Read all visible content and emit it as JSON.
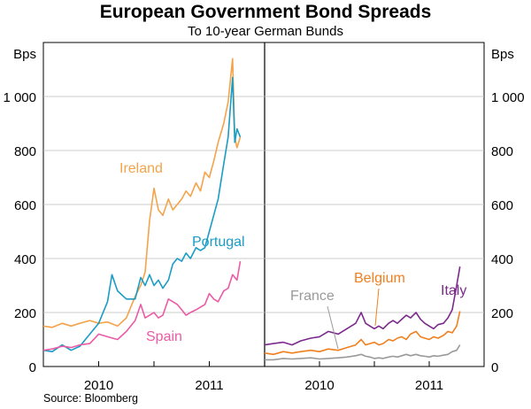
{
  "title": "European Government Bond Spreads",
  "subtitle": "To 10-year German Bunds",
  "source": "Source: Bloomberg",
  "colors": {
    "ireland": "#f4a34a",
    "portugal": "#1a9cc4",
    "spain": "#ea5ba5",
    "italy": "#7b2a8c",
    "belgium": "#f07f1e",
    "france": "#9a9a9a"
  },
  "chart_data": [
    {
      "type": "line",
      "panel": "left",
      "title": "European Government Bond Spreads",
      "subtitle": "To 10-year German Bunds",
      "ylabel": "Bps",
      "ylim": [
        0,
        1200
      ],
      "yticks": [
        0,
        200,
        400,
        600,
        800,
        1000
      ],
      "ytick_labels": [
        "0",
        "200",
        "400",
        "600",
        "800",
        "1 000"
      ],
      "xlim": [
        2009.5,
        2011.5
      ],
      "xtick_labels": [
        "2010",
        "2011"
      ],
      "xticks": [
        2010,
        2011
      ],
      "x_tick_marks": [
        2009.5,
        2010,
        2010.5,
        2011,
        2011.5
      ],
      "series": [
        {
          "name": "Ireland",
          "color_key": "ireland",
          "points": [
            [
              2009.5,
              150
            ],
            [
              2009.58,
              145
            ],
            [
              2009.67,
              160
            ],
            [
              2009.75,
              150
            ],
            [
              2009.83,
              160
            ],
            [
              2009.92,
              170
            ],
            [
              2010.0,
              160
            ],
            [
              2010.08,
              165
            ],
            [
              2010.17,
              150
            ],
            [
              2010.25,
              180
            ],
            [
              2010.33,
              260
            ],
            [
              2010.38,
              300
            ],
            [
              2010.42,
              350
            ],
            [
              2010.46,
              540
            ],
            [
              2010.5,
              660
            ],
            [
              2010.54,
              580
            ],
            [
              2010.58,
              560
            ],
            [
              2010.63,
              620
            ],
            [
              2010.67,
              580
            ],
            [
              2010.71,
              600
            ],
            [
              2010.75,
              620
            ],
            [
              2010.79,
              650
            ],
            [
              2010.83,
              630
            ],
            [
              2010.88,
              680
            ],
            [
              2010.92,
              650
            ],
            [
              2010.96,
              720
            ],
            [
              2011.0,
              700
            ],
            [
              2011.04,
              760
            ],
            [
              2011.08,
              830
            ],
            [
              2011.13,
              900
            ],
            [
              2011.17,
              980
            ],
            [
              2011.21,
              1140
            ],
            [
              2011.23,
              850
            ],
            [
              2011.25,
              810
            ],
            [
              2011.28,
              850
            ]
          ]
        },
        {
          "name": "Portugal",
          "color_key": "portugal",
          "points": [
            [
              2009.5,
              60
            ],
            [
              2009.58,
              55
            ],
            [
              2009.67,
              80
            ],
            [
              2009.75,
              60
            ],
            [
              2009.83,
              75
            ],
            [
              2009.92,
              120
            ],
            [
              2010.0,
              160
            ],
            [
              2010.08,
              240
            ],
            [
              2010.12,
              340
            ],
            [
              2010.17,
              280
            ],
            [
              2010.25,
              250
            ],
            [
              2010.33,
              250
            ],
            [
              2010.38,
              330
            ],
            [
              2010.42,
              300
            ],
            [
              2010.46,
              340
            ],
            [
              2010.5,
              300
            ],
            [
              2010.54,
              320
            ],
            [
              2010.58,
              290
            ],
            [
              2010.63,
              320
            ],
            [
              2010.67,
              380
            ],
            [
              2010.71,
              400
            ],
            [
              2010.75,
              390
            ],
            [
              2010.79,
              420
            ],
            [
              2010.83,
              400
            ],
            [
              2010.88,
              440
            ],
            [
              2010.92,
              430
            ],
            [
              2010.96,
              440
            ],
            [
              2011.0,
              500
            ],
            [
              2011.04,
              560
            ],
            [
              2011.08,
              620
            ],
            [
              2011.13,
              750
            ],
            [
              2011.17,
              850
            ],
            [
              2011.21,
              1070
            ],
            [
              2011.23,
              830
            ],
            [
              2011.25,
              880
            ],
            [
              2011.28,
              850
            ]
          ]
        },
        {
          "name": "Spain",
          "color_key": "spain",
          "points": [
            [
              2009.5,
              60
            ],
            [
              2009.58,
              65
            ],
            [
              2009.67,
              75
            ],
            [
              2009.75,
              70
            ],
            [
              2009.83,
              80
            ],
            [
              2009.92,
              85
            ],
            [
              2010.0,
              120
            ],
            [
              2010.08,
              110
            ],
            [
              2010.17,
              100
            ],
            [
              2010.25,
              130
            ],
            [
              2010.33,
              170
            ],
            [
              2010.38,
              230
            ],
            [
              2010.42,
              180
            ],
            [
              2010.46,
              190
            ],
            [
              2010.5,
              200
            ],
            [
              2010.54,
              180
            ],
            [
              2010.58,
              190
            ],
            [
              2010.63,
              250
            ],
            [
              2010.67,
              240
            ],
            [
              2010.71,
              230
            ],
            [
              2010.75,
              210
            ],
            [
              2010.79,
              190
            ],
            [
              2010.83,
              200
            ],
            [
              2010.88,
              210
            ],
            [
              2010.92,
              220
            ],
            [
              2010.96,
              230
            ],
            [
              2011.0,
              270
            ],
            [
              2011.04,
              250
            ],
            [
              2011.08,
              240
            ],
            [
              2011.13,
              280
            ],
            [
              2011.17,
              290
            ],
            [
              2011.21,
              340
            ],
            [
              2011.25,
              320
            ],
            [
              2011.28,
              390
            ]
          ]
        }
      ],
      "annotations": [
        {
          "text": "Ireland",
          "color_key": "ireland"
        },
        {
          "text": "Portugal",
          "color_key": "portugal"
        },
        {
          "text": "Spain",
          "color_key": "spain"
        }
      ]
    },
    {
      "type": "line",
      "panel": "right",
      "ylabel": "Bps",
      "ylim": [
        0,
        1200
      ],
      "yticks": [
        0,
        200,
        400,
        600,
        800,
        1000
      ],
      "ytick_labels": [
        "0",
        "200",
        "400",
        "600",
        "800",
        "1 000"
      ],
      "xlim": [
        2009.5,
        2011.5
      ],
      "xtick_labels": [
        "2010",
        "2011"
      ],
      "xticks": [
        2010,
        2011
      ],
      "x_tick_marks": [
        2009.5,
        2010,
        2010.5,
        2011,
        2011.5
      ],
      "series": [
        {
          "name": "Italy",
          "color_key": "italy",
          "points": [
            [
              2009.5,
              80
            ],
            [
              2009.58,
              85
            ],
            [
              2009.67,
              90
            ],
            [
              2009.75,
              80
            ],
            [
              2009.83,
              95
            ],
            [
              2009.92,
              105
            ],
            [
              2010.0,
              110
            ],
            [
              2010.08,
              130
            ],
            [
              2010.17,
              120
            ],
            [
              2010.25,
              140
            ],
            [
              2010.33,
              160
            ],
            [
              2010.38,
              200
            ],
            [
              2010.42,
              160
            ],
            [
              2010.46,
              150
            ],
            [
              2010.5,
              140
            ],
            [
              2010.54,
              150
            ],
            [
              2010.58,
              140
            ],
            [
              2010.63,
              160
            ],
            [
              2010.67,
              170
            ],
            [
              2010.71,
              160
            ],
            [
              2010.75,
              175
            ],
            [
              2010.79,
              190
            ],
            [
              2010.83,
              180
            ],
            [
              2010.88,
              200
            ],
            [
              2010.92,
              175
            ],
            [
              2010.96,
              160
            ],
            [
              2011.0,
              150
            ],
            [
              2011.04,
              140
            ],
            [
              2011.08,
              155
            ],
            [
              2011.13,
              160
            ],
            [
              2011.17,
              180
            ],
            [
              2011.21,
              210
            ],
            [
              2011.25,
              300
            ],
            [
              2011.28,
              370
            ]
          ]
        },
        {
          "name": "Belgium",
          "color_key": "belgium",
          "points": [
            [
              2009.5,
              50
            ],
            [
              2009.58,
              45
            ],
            [
              2009.67,
              55
            ],
            [
              2009.75,
              50
            ],
            [
              2009.83,
              55
            ],
            [
              2009.92,
              60
            ],
            [
              2010.0,
              55
            ],
            [
              2010.08,
              65
            ],
            [
              2010.17,
              60
            ],
            [
              2010.25,
              70
            ],
            [
              2010.33,
              80
            ],
            [
              2010.38,
              100
            ],
            [
              2010.42,
              80
            ],
            [
              2010.46,
              85
            ],
            [
              2010.5,
              90
            ],
            [
              2010.54,
              80
            ],
            [
              2010.58,
              85
            ],
            [
              2010.63,
              100
            ],
            [
              2010.67,
              95
            ],
            [
              2010.71,
              105
            ],
            [
              2010.75,
              110
            ],
            [
              2010.79,
              100
            ],
            [
              2010.83,
              120
            ],
            [
              2010.88,
              130
            ],
            [
              2010.92,
              110
            ],
            [
              2010.96,
              105
            ],
            [
              2011.0,
              100
            ],
            [
              2011.04,
              110
            ],
            [
              2011.08,
              105
            ],
            [
              2011.13,
              115
            ],
            [
              2011.17,
              130
            ],
            [
              2011.21,
              125
            ],
            [
              2011.25,
              150
            ],
            [
              2011.28,
              205
            ]
          ]
        },
        {
          "name": "France",
          "color_key": "france",
          "points": [
            [
              2009.5,
              25
            ],
            [
              2009.58,
              25
            ],
            [
              2009.67,
              30
            ],
            [
              2009.75,
              28
            ],
            [
              2009.83,
              30
            ],
            [
              2009.92,
              32
            ],
            [
              2010.0,
              28
            ],
            [
              2010.08,
              30
            ],
            [
              2010.17,
              32
            ],
            [
              2010.25,
              35
            ],
            [
              2010.33,
              40
            ],
            [
              2010.38,
              45
            ],
            [
              2010.42,
              38
            ],
            [
              2010.46,
              35
            ],
            [
              2010.5,
              30
            ],
            [
              2010.54,
              32
            ],
            [
              2010.58,
              30
            ],
            [
              2010.63,
              35
            ],
            [
              2010.67,
              38
            ],
            [
              2010.71,
              35
            ],
            [
              2010.75,
              40
            ],
            [
              2010.79,
              45
            ],
            [
              2010.83,
              40
            ],
            [
              2010.88,
              45
            ],
            [
              2010.92,
              40
            ],
            [
              2010.96,
              38
            ],
            [
              2011.0,
              35
            ],
            [
              2011.04,
              40
            ],
            [
              2011.08,
              38
            ],
            [
              2011.13,
              42
            ],
            [
              2011.17,
              45
            ],
            [
              2011.21,
              55
            ],
            [
              2011.25,
              60
            ],
            [
              2011.28,
              80
            ]
          ]
        }
      ],
      "annotations": [
        {
          "text": "France",
          "color_key": "france"
        },
        {
          "text": "Belgium",
          "color_key": "belgium"
        },
        {
          "text": "Italy",
          "color_key": "italy"
        }
      ]
    }
  ]
}
